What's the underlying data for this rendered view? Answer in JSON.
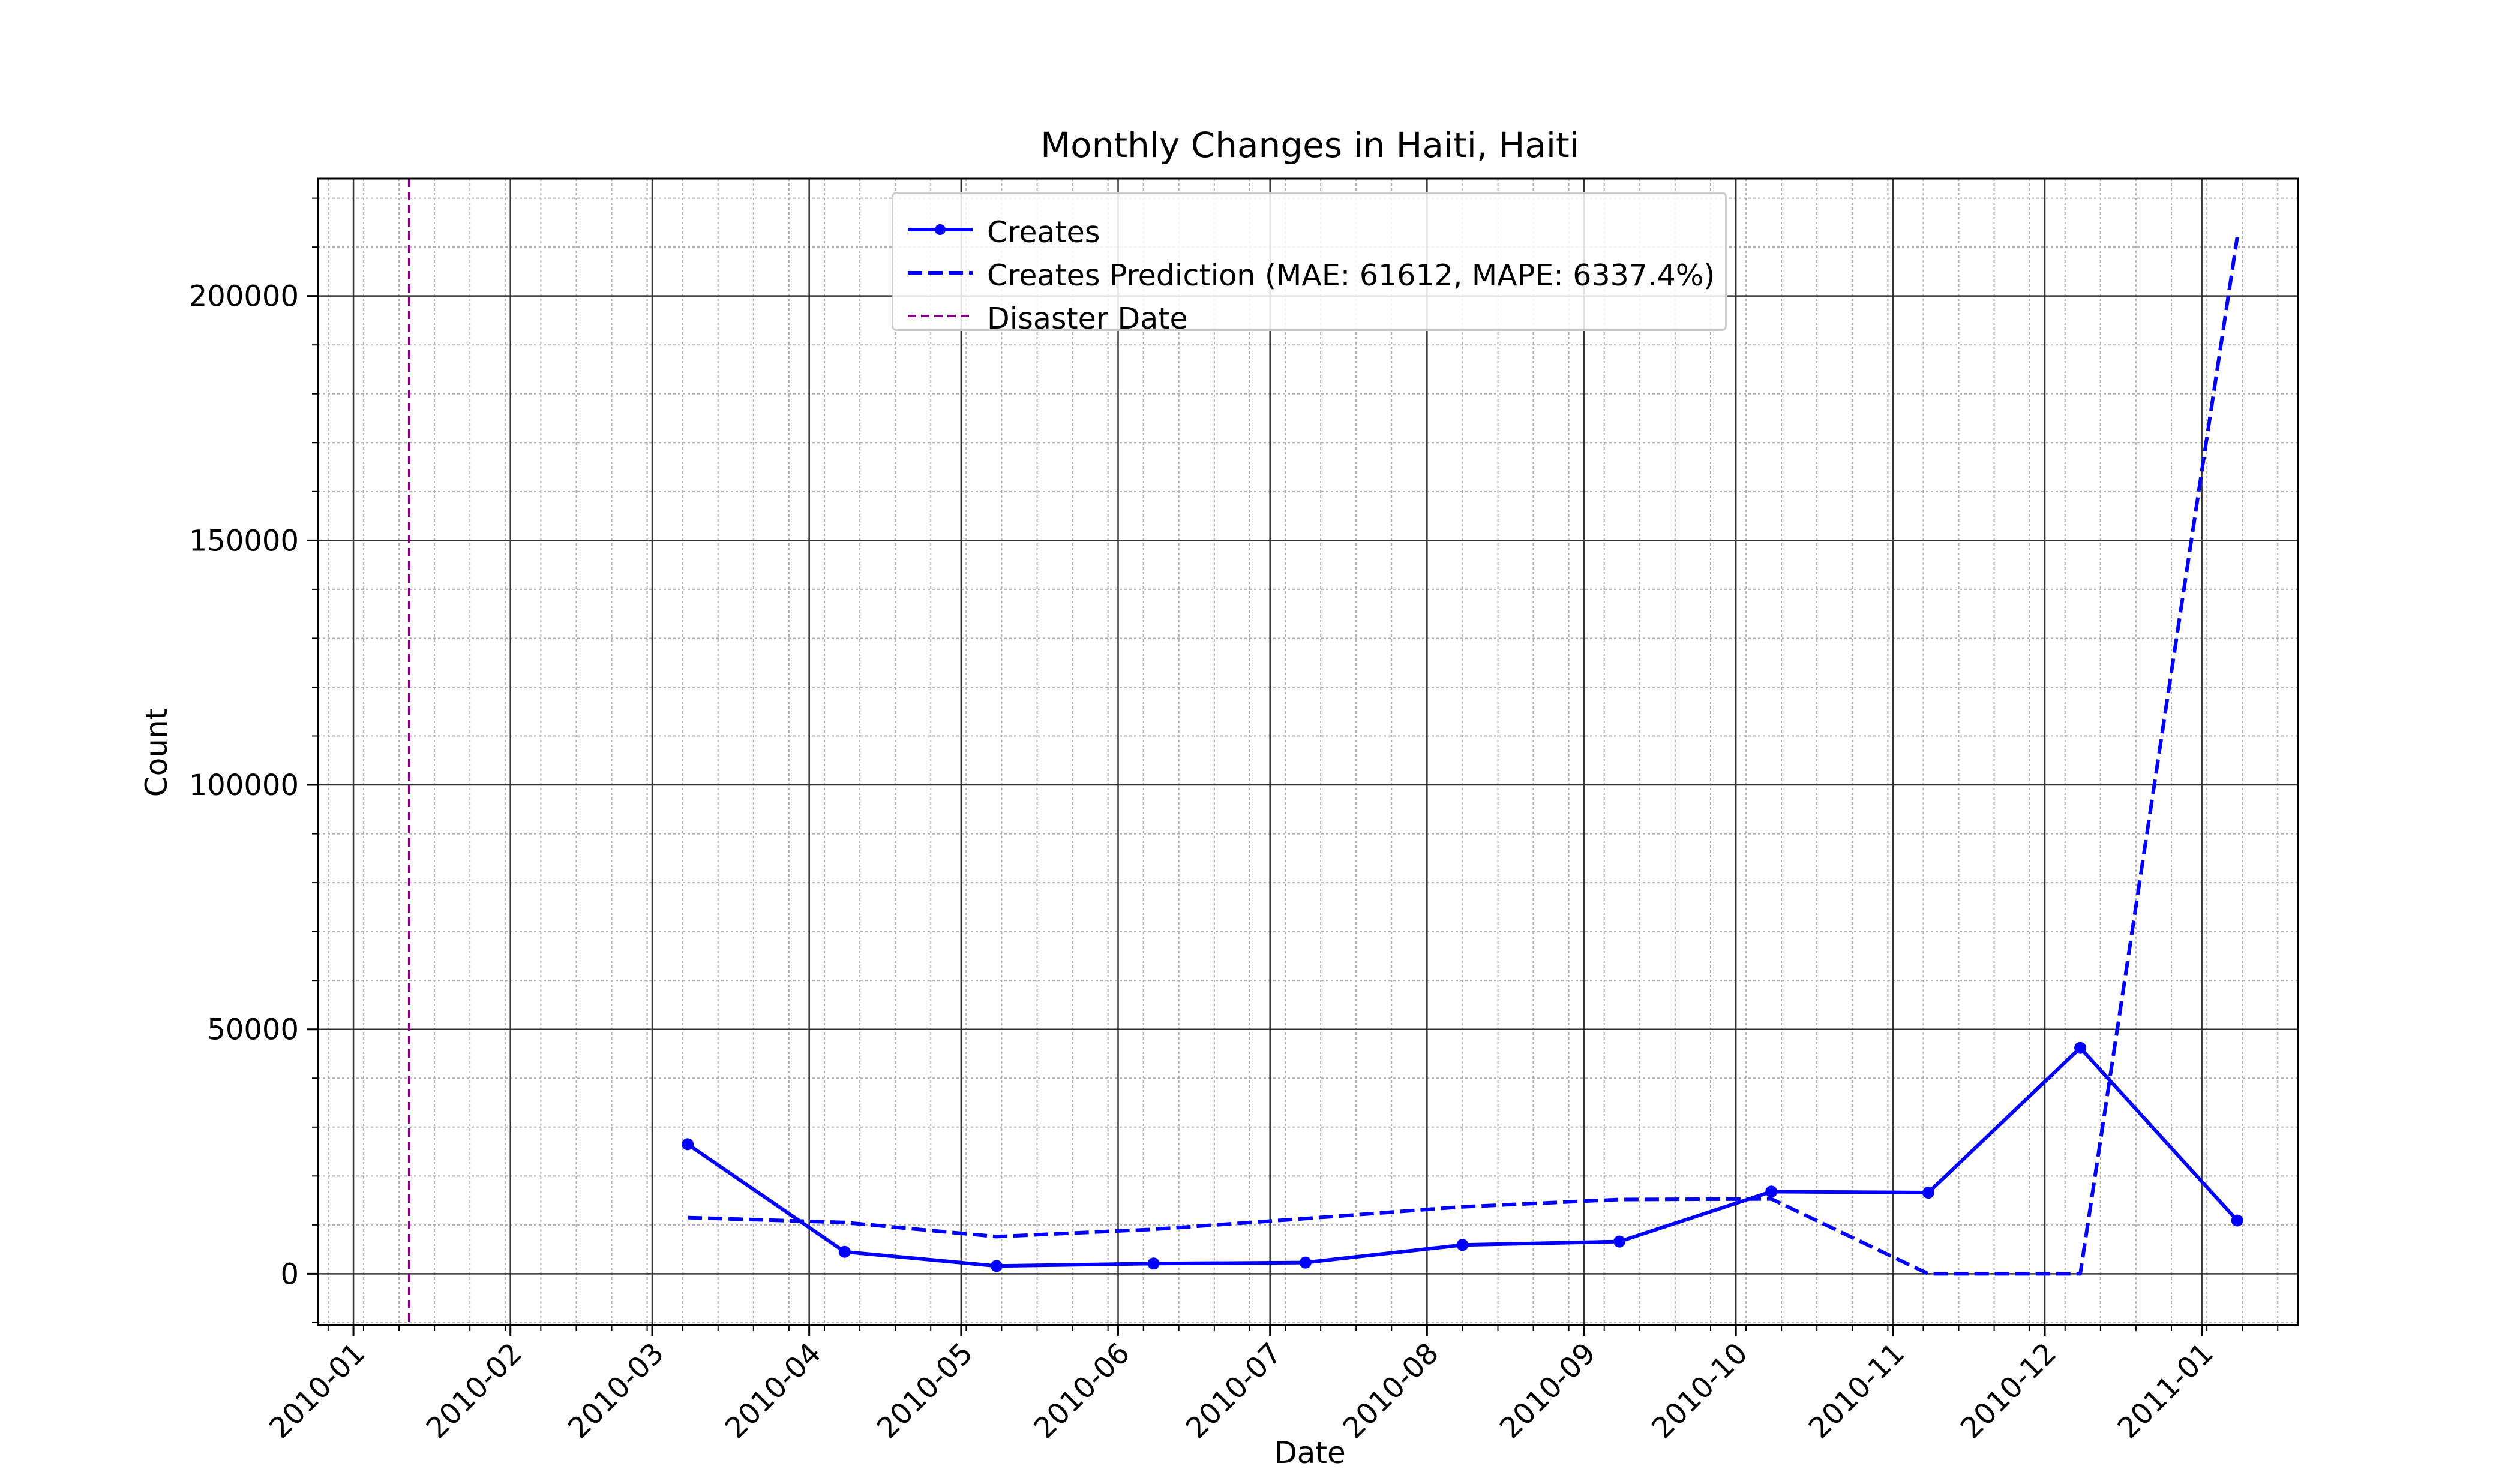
{
  "chart_data": {
    "type": "line",
    "title": "Monthly Changes in Haiti, Haiti",
    "xlabel": "Date",
    "ylabel": "Count",
    "x_ticks": [
      "2010-01",
      "2010-02",
      "2010-03",
      "2010-04",
      "2010-05",
      "2010-06",
      "2010-07",
      "2010-08",
      "2010-09",
      "2010-10",
      "2010-11",
      "2010-12",
      "2011-01"
    ],
    "y_ticks": [
      0,
      50000,
      100000,
      150000,
      200000
    ],
    "xlim": [
      "2009-12-25",
      "2011-01-20"
    ],
    "ylim": [
      -10500,
      224000
    ],
    "grid": true,
    "legend_position": "top-center",
    "series": [
      {
        "name": "Creates",
        "style": "solid-marker",
        "color": "#0000ff",
        "x": [
          "2010-03-08",
          "2010-04-08",
          "2010-05-08",
          "2010-06-08",
          "2010-07-08",
          "2010-08-08",
          "2010-09-08",
          "2010-10-08",
          "2010-11-08",
          "2010-12-08",
          "2011-01-08"
        ],
        "y": [
          26500,
          4500,
          1600,
          2100,
          2300,
          5900,
          6600,
          16800,
          16600,
          46200,
          10900
        ]
      },
      {
        "name": "Creates Prediction (MAE: 61612, MAPE: 6337.4%)",
        "style": "dashed",
        "color": "#0000ff",
        "x": [
          "2010-03-08",
          "2010-04-08",
          "2010-05-08",
          "2010-06-08",
          "2010-07-08",
          "2010-08-08",
          "2010-09-08",
          "2010-10-08",
          "2010-11-08",
          "2010-12-08",
          "2011-01-08"
        ],
        "y": [
          11500,
          10500,
          7600,
          9100,
          11300,
          13700,
          15200,
          15300,
          0,
          0,
          212000
        ]
      }
    ],
    "vlines": [
      {
        "name": "Disaster Date",
        "x": "2010-01-12",
        "color": "#800080",
        "style": "dashed"
      }
    ]
  }
}
